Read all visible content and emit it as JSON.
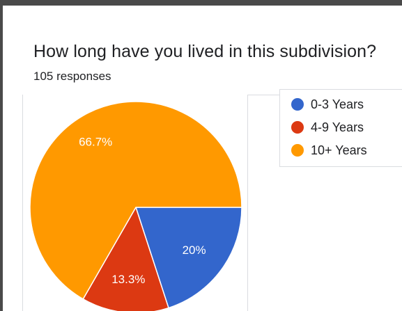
{
  "title": "How long have you lived in this subdivision?",
  "subtitle": "105 responses",
  "chart_data": {
    "type": "pie",
    "title": "How long have you lived in this subdivision?",
    "subtitle": "105 responses",
    "slices": [
      {
        "label": "0-3 Years",
        "value": 20.0,
        "display": "20%",
        "color": "#3366cc"
      },
      {
        "label": "4-9 Years",
        "value": 13.3,
        "display": "13.3%",
        "color": "#dc3912"
      },
      {
        "label": "10+ Years",
        "value": 66.7,
        "display": "66.7%",
        "color": "#ff9900"
      }
    ],
    "start_angle_deg": 90,
    "direction": "clockwise",
    "legend_position": "right"
  }
}
